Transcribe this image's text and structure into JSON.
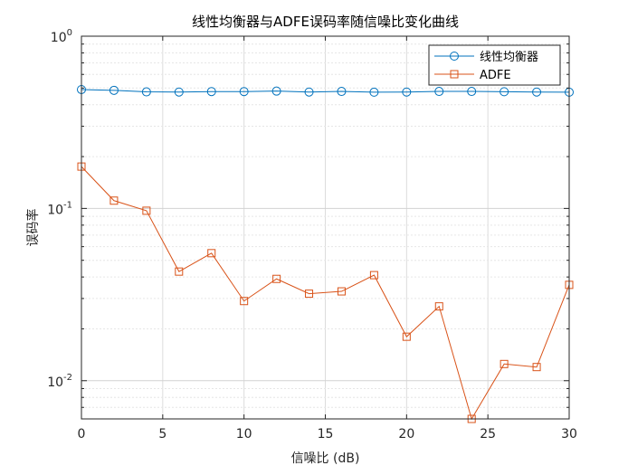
{
  "chart_data": {
    "type": "line",
    "title": "线性均衡器与ADFE误码率随信噪比变化曲线",
    "xlabel": "信噪比 (dB)",
    "ylabel": "误码率",
    "xlim": [
      0,
      30
    ],
    "ylim": [
      0.006,
      1
    ],
    "y_scale": "log",
    "grid": true,
    "legend_position": "top-right",
    "x_ticks": [
      0,
      5,
      10,
      15,
      20,
      25,
      30
    ],
    "y_ticks": [
      {
        "value": 0.01,
        "base": "10",
        "exp": "-2"
      },
      {
        "value": 0.1,
        "base": "10",
        "exp": "-1"
      },
      {
        "value": 1,
        "base": "10",
        "exp": "0"
      }
    ],
    "x": [
      0,
      2,
      4,
      6,
      8,
      10,
      12,
      14,
      16,
      18,
      20,
      22,
      24,
      26,
      28,
      30
    ],
    "series": [
      {
        "name": "线性均衡器",
        "marker": "circle",
        "color": "#0072BD",
        "values": [
          0.49,
          0.485,
          0.475,
          0.474,
          0.477,
          0.477,
          0.48,
          0.474,
          0.478,
          0.473,
          0.474,
          0.478,
          0.478,
          0.476,
          0.474,
          0.473
        ]
      },
      {
        "name": "ADFE",
        "marker": "square",
        "color": "#D95319",
        "values": [
          0.175,
          0.111,
          0.097,
          0.043,
          0.055,
          0.029,
          0.039,
          0.032,
          0.033,
          0.041,
          0.018,
          0.027,
          0.006,
          0.0125,
          0.012,
          0.036
        ]
      }
    ]
  }
}
